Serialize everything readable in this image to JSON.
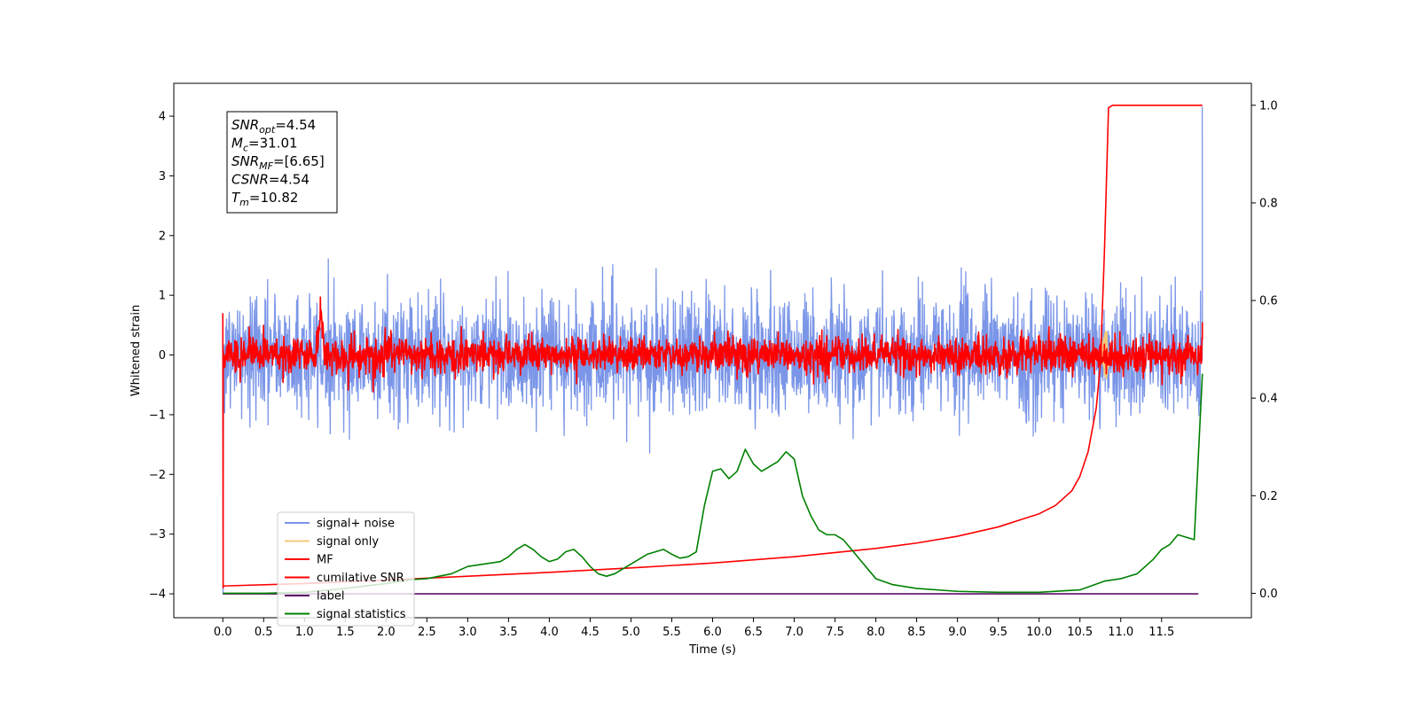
{
  "chart_data": {
    "type": "line",
    "xlabel": "Time (s)",
    "ylabel": "Whitened strain",
    "xlim": [
      -0.6,
      12.6
    ],
    "ylim": [
      -4.4,
      4.55
    ],
    "y2lim": [
      -0.05,
      1.045
    ],
    "xticks": [
      "0.0",
      "0.5",
      "1.0",
      "1.5",
      "2.0",
      "2.5",
      "3.0",
      "3.5",
      "4.0",
      "4.5",
      "5.0",
      "5.5",
      "6.0",
      "6.5",
      "7.0",
      "7.5",
      "8.0",
      "8.5",
      "9.0",
      "9.5",
      "10.0",
      "10.5",
      "11.0",
      "11.5"
    ],
    "yticks": [
      "−4",
      "−3",
      "−2",
      "−1",
      "0",
      "1",
      "2",
      "3",
      "4"
    ],
    "y2ticks": [
      "0.0",
      "0.2",
      "0.4",
      "0.6",
      "0.8",
      "1.0"
    ],
    "grid": false,
    "legend_position": "lower-left",
    "annotation": {
      "lines": [
        {
          "sym": "SNR",
          "sub": "opt",
          "value": "=4.54"
        },
        {
          "sym": "M",
          "sub": "c",
          "value": "=31.01"
        },
        {
          "sym": "SNR",
          "sub": "MF",
          "value": "=[6.65]"
        },
        {
          "sym": "CSNR",
          "sub": "",
          "value": "=4.54"
        },
        {
          "sym": "T",
          "sub": "m",
          "value": "=10.82"
        }
      ]
    },
    "series": [
      {
        "name": "signal+ noise",
        "color": "#7b96e8",
        "axis": "left",
        "kind": "noise",
        "x_range": [
          0,
          12
        ],
        "amplitude_1sigma": 0.5,
        "max_excursion": [
          -1.8,
          1.8
        ],
        "edge_values": {
          "start": -4.0,
          "end": 4.15
        }
      },
      {
        "name": "signal only",
        "color": "#f5c97a",
        "axis": "left",
        "kind": "chirp",
        "peak_time": 10.82,
        "peak_amplitude": 0.4
      },
      {
        "name": "MF",
        "color": "#ff0000",
        "axis": "left",
        "kind": "noise",
        "x_range": [
          0,
          12
        ],
        "amplitude_1sigma": 0.15,
        "feature": {
          "time": 1.2,
          "value": 1.0
        }
      },
      {
        "name": "cumilative SNR",
        "color": "#ff0000",
        "axis": "right",
        "kind": "curve",
        "x": [
          0.0,
          1.0,
          2.0,
          3.0,
          4.0,
          5.0,
          6.0,
          7.0,
          8.0,
          8.5,
          9.0,
          9.5,
          10.0,
          10.2,
          10.4,
          10.5,
          10.6,
          10.7,
          10.75,
          10.8,
          10.85,
          10.9,
          11.0,
          11.5,
          12.0
        ],
        "values": [
          0.015,
          0.02,
          0.027,
          0.035,
          0.043,
          0.052,
          0.062,
          0.075,
          0.092,
          0.103,
          0.117,
          0.136,
          0.163,
          0.18,
          0.21,
          0.24,
          0.29,
          0.38,
          0.47,
          0.7,
          0.995,
          1.0,
          1.0,
          1.0,
          1.0
        ]
      },
      {
        "name": "label",
        "color": "#5b0f66",
        "axis": "left",
        "kind": "constant",
        "x": [
          0.0,
          11.95
        ],
        "values": [
          -4.0,
          -4.0
        ]
      },
      {
        "name": "signal statistics",
        "color": "#008000",
        "axis": "right",
        "kind": "curve",
        "x": [
          0.0,
          0.5,
          1.0,
          1.5,
          2.0,
          2.3,
          2.5,
          2.8,
          3.0,
          3.2,
          3.4,
          3.5,
          3.6,
          3.7,
          3.8,
          3.9,
          4.0,
          4.1,
          4.2,
          4.3,
          4.4,
          4.5,
          4.6,
          4.7,
          4.8,
          5.0,
          5.2,
          5.4,
          5.5,
          5.6,
          5.7,
          5.8,
          5.9,
          6.0,
          6.1,
          6.2,
          6.3,
          6.4,
          6.5,
          6.6,
          6.7,
          6.8,
          6.9,
          7.0,
          7.1,
          7.2,
          7.3,
          7.4,
          7.5,
          7.6,
          7.7,
          7.8,
          7.9,
          8.0,
          8.2,
          8.5,
          9.0,
          9.5,
          10.0,
          10.5,
          10.8,
          11.0,
          11.2,
          11.4,
          11.5,
          11.6,
          11.7,
          11.8,
          11.9,
          12.0
        ],
        "values": [
          0.0,
          0.0,
          0.002,
          0.01,
          0.02,
          0.028,
          0.03,
          0.04,
          0.055,
          0.06,
          0.065,
          0.075,
          0.09,
          0.1,
          0.09,
          0.075,
          0.065,
          0.07,
          0.085,
          0.09,
          0.075,
          0.055,
          0.04,
          0.035,
          0.04,
          0.06,
          0.08,
          0.09,
          0.08,
          0.072,
          0.075,
          0.085,
          0.18,
          0.25,
          0.255,
          0.235,
          0.25,
          0.295,
          0.265,
          0.25,
          0.26,
          0.27,
          0.29,
          0.275,
          0.2,
          0.16,
          0.13,
          0.12,
          0.12,
          0.11,
          0.09,
          0.07,
          0.05,
          0.03,
          0.018,
          0.01,
          0.004,
          0.002,
          0.002,
          0.007,
          0.025,
          0.03,
          0.04,
          0.07,
          0.09,
          0.1,
          0.12,
          0.115,
          0.11,
          0.45
        ]
      }
    ]
  }
}
